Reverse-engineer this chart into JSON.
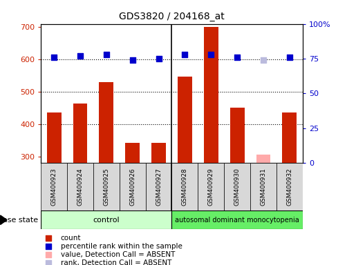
{
  "title": "GDS3820 / 204168_at",
  "samples": [
    "GSM400923",
    "GSM400924",
    "GSM400925",
    "GSM400926",
    "GSM400927",
    "GSM400928",
    "GSM400929",
    "GSM400930",
    "GSM400931",
    "GSM400932"
  ],
  "bar_values": [
    435,
    463,
    530,
    343,
    343,
    548,
    700,
    450,
    305,
    437
  ],
  "bar_absent": [
    false,
    false,
    false,
    false,
    false,
    false,
    false,
    false,
    true,
    false
  ],
  "percentile_values": [
    76,
    77,
    78,
    74,
    75,
    78,
    78,
    76,
    74,
    76
  ],
  "percentile_absent": [
    false,
    false,
    false,
    false,
    false,
    false,
    false,
    false,
    true,
    false
  ],
  "bar_color": "#cc2200",
  "bar_absent_color": "#ffaaaa",
  "dot_color": "#0000cc",
  "dot_absent_color": "#bbbbdd",
  "ylim_left": [
    280,
    710
  ],
  "ylim_right": [
    0,
    100
  ],
  "yticks_left": [
    300,
    400,
    500,
    600,
    700
  ],
  "yticks_right": [
    0,
    25,
    50,
    75,
    100
  ],
  "grid_values": [
    400,
    500,
    600
  ],
  "control_samples": 5,
  "disease_samples": 5,
  "group1_label": "control",
  "group2_label": "autosomal dominant monocytopenia",
  "legend_items": [
    {
      "label": "count",
      "color": "#cc2200"
    },
    {
      "label": "percentile rank within the sample",
      "color": "#0000cc"
    },
    {
      "label": "value, Detection Call = ABSENT",
      "color": "#ffaaaa"
    },
    {
      "label": "rank, Detection Call = ABSENT",
      "color": "#bbbbdd"
    }
  ],
  "bar_width": 0.55,
  "dot_size": 35,
  "background_color": "#ffffff",
  "plot_bg_color": "#ffffff",
  "control_green": "#ccffcc",
  "disease_green": "#66ee66"
}
